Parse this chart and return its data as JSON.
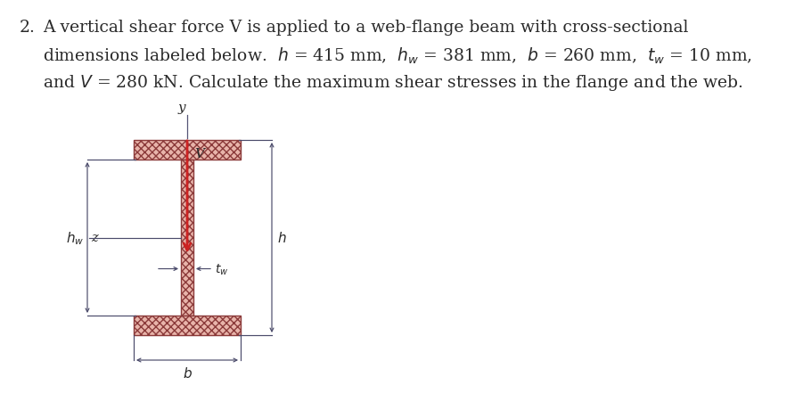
{
  "background_color": "#ffffff",
  "text_color": "#2a2a2a",
  "beam_fill_color": "#e8b4aa",
  "beam_edge_color": "#8b3a3a",
  "beam_hatch_color": "#cc7777",
  "fig_width": 8.92,
  "fig_height": 4.52,
  "dpi": 100,
  "line1": "A vertical shear force V is applied to a web-flange beam with cross-sectional",
  "line2": "dimensions labeled below.  h = 415 mm,  hw = 381 mm,  b = 260 mm,  tw = 10 mm,",
  "line3": "and V = 280 kN. Calculate the maximum shear stresses in the flange and the web.",
  "dim_color": "#4a4a6a",
  "arrow_color": "#cc2222",
  "axis_color": "#555577"
}
